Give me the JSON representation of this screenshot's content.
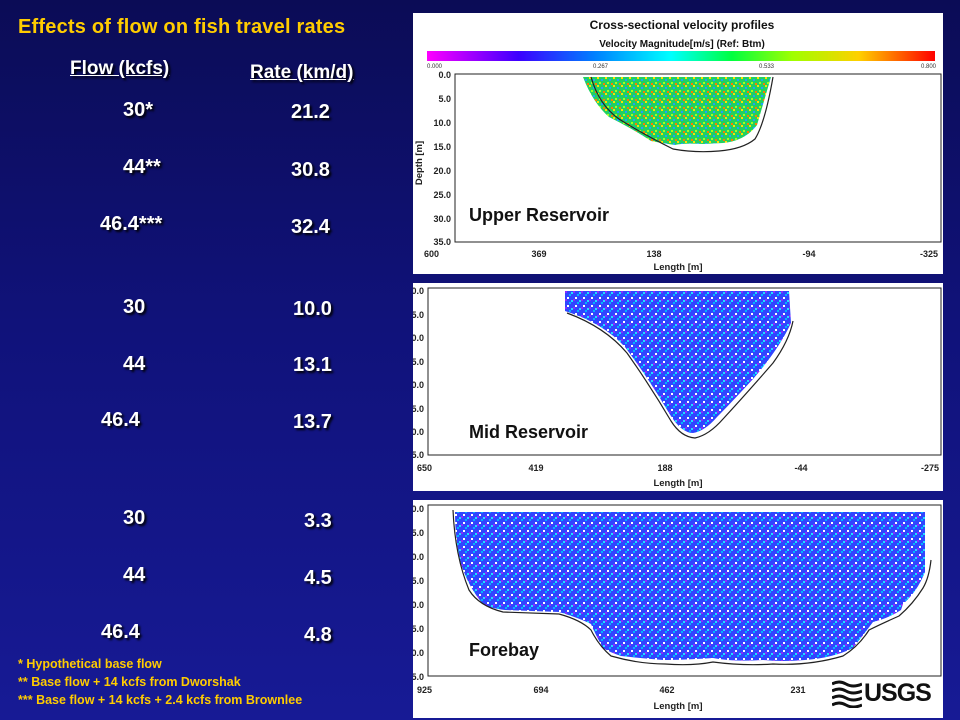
{
  "title": "Effects of flow on fish travel rates",
  "headers": {
    "flow": "Flow (kcfs)",
    "rate": "Rate (km/d)"
  },
  "groups": [
    {
      "rows": [
        {
          "flow": "30*",
          "rate": "21.2"
        },
        {
          "flow": "44**",
          "rate": "30.8"
        },
        {
          "flow": "46.4***",
          "rate": "32.4"
        }
      ]
    },
    {
      "rows": [
        {
          "flow": "30",
          "rate": "10.0"
        },
        {
          "flow": "44",
          "rate": "13.1"
        },
        {
          "flow": "46.4",
          "rate": "13.7"
        }
      ]
    },
    {
      "rows": [
        {
          "flow": "30",
          "rate": "3.3"
        },
        {
          "flow": "44",
          "rate": "4.5"
        },
        {
          "flow": "46.4",
          "rate": "4.8"
        }
      ]
    }
  ],
  "footnotes": [
    "* Hypothetical base flow",
    "** Base flow + 14 kcfs from Dworshak",
    "*** Base flow + 14 kcfs + 2.4 kcfs from Brownlee"
  ],
  "profiles": {
    "header": "Cross-sectional velocity profiles",
    "colorbar_label": "Velocity Magnitude[m/s] (Ref: Btm)",
    "colorbar_ticks": [
      "0.000",
      "0.267",
      "0.533",
      "0.800"
    ],
    "y_label": "Depth [m]",
    "x_label": "Length [m]",
    "y_ticks": [
      "0.0",
      "5.0",
      "10.0",
      "15.0",
      "20.0",
      "25.0",
      "30.0",
      "35.0"
    ],
    "panels": [
      {
        "label": "Upper Reservoir",
        "x_ticks": [
          "600",
          "369",
          "138",
          "-94",
          "-325"
        ]
      },
      {
        "label": "Mid Reservoir",
        "x_ticks": [
          "650",
          "419",
          "188",
          "-44",
          "-275"
        ]
      },
      {
        "label": "Forebay",
        "x_ticks": [
          "925",
          "694",
          "462",
          "231"
        ]
      }
    ]
  },
  "logo_text": "USGS",
  "colors": {
    "title": "#ffcc00",
    "values": "#ffffff",
    "background": "#10127a"
  }
}
